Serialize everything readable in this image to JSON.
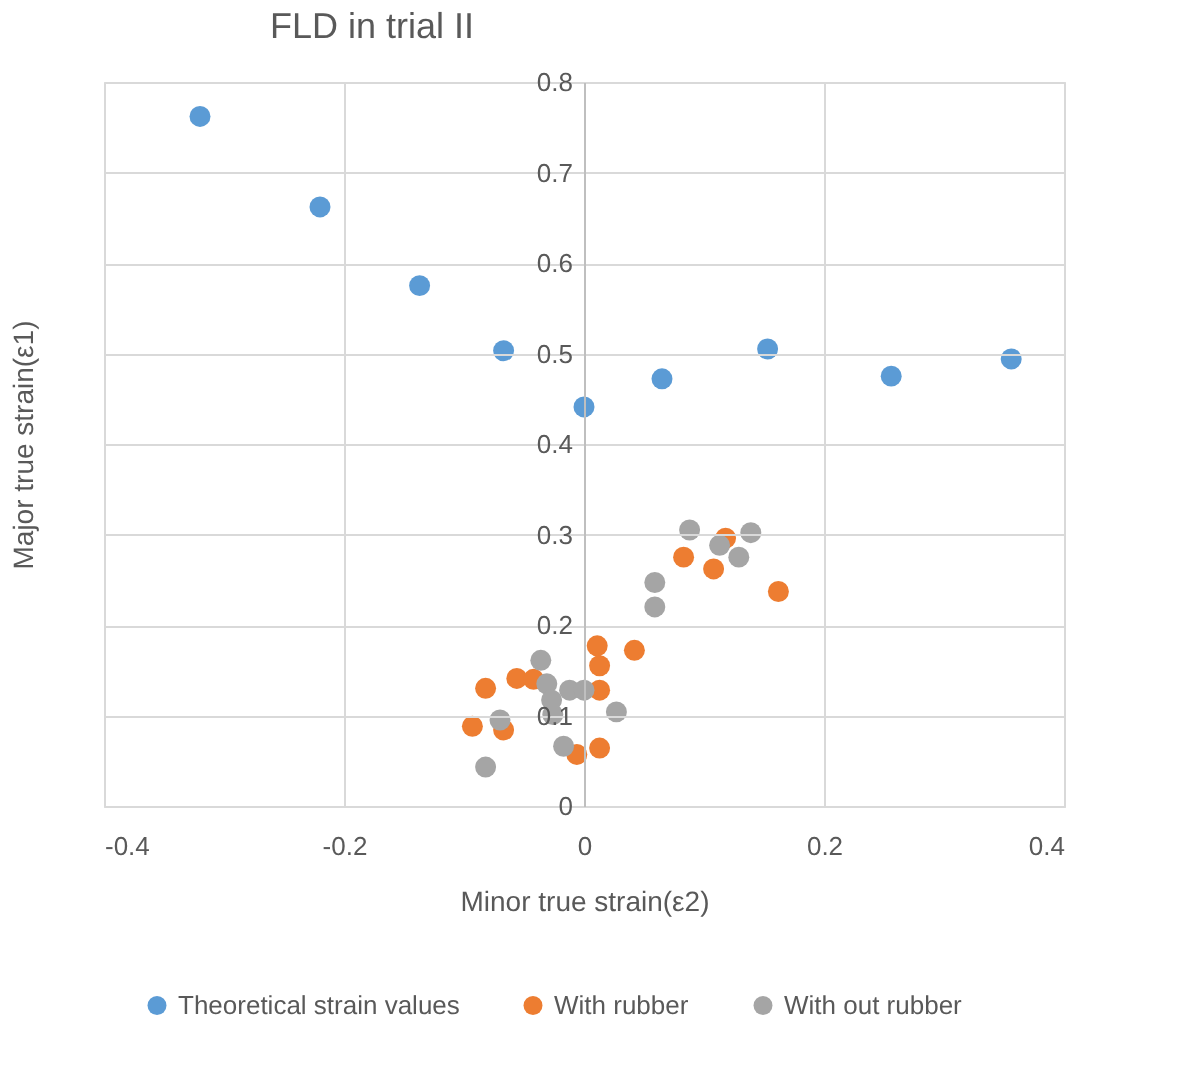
{
  "chart_data": {
    "type": "scatter",
    "title": "FLD in trial II",
    "xlabel": "Minor true strain(ε2)",
    "ylabel": "Major true strain(ε1)",
    "xlim": [
      -0.4,
      0.4
    ],
    "ylim": [
      0,
      0.8
    ],
    "xticks": [
      -0.4,
      -0.2,
      0,
      0.2,
      0.4
    ],
    "yticks": [
      0,
      0.1,
      0.2,
      0.3,
      0.4,
      0.5,
      0.6,
      0.7,
      0.8
    ],
    "grid": true,
    "legend": "bottom",
    "marker": "circle",
    "series": [
      {
        "name": "Theoretical strain values",
        "color": "#5b9bd5",
        "x": [
          -0.32,
          -0.22,
          -0.137,
          -0.067,
          0.0,
          0.065,
          0.153,
          0.256,
          0.356
        ],
        "values": [
          0.762,
          0.662,
          0.575,
          0.503,
          0.441,
          0.472,
          0.505,
          0.475,
          0.494
        ]
      },
      {
        "name": "With rubber",
        "color": "#ed7d31",
        "x": [
          -0.082,
          -0.056,
          -0.093,
          -0.067,
          -0.042,
          0.011,
          0.013,
          0.013,
          0.042,
          -0.006,
          0.013,
          0.083,
          0.108,
          0.118,
          0.162
        ],
        "values": [
          0.13,
          0.141,
          0.088,
          0.084,
          0.14,
          0.177,
          0.155,
          0.128,
          0.172,
          0.057,
          0.064,
          0.275,
          0.262,
          0.296,
          0.237
        ]
      },
      {
        "name": "With out rubber",
        "color": "#a5a5a5",
        "x": [
          -0.082,
          -0.07,
          -0.036,
          -0.031,
          -0.027,
          -0.026,
          -0.017,
          -0.012,
          0.0,
          0.027,
          0.059,
          0.059,
          0.088,
          0.113,
          0.129,
          0.139
        ],
        "values": [
          0.043,
          0.095,
          0.161,
          0.135,
          0.117,
          0.101,
          0.066,
          0.128,
          0.128,
          0.104,
          0.22,
          0.247,
          0.305,
          0.288,
          0.275,
          0.302
        ]
      }
    ]
  }
}
